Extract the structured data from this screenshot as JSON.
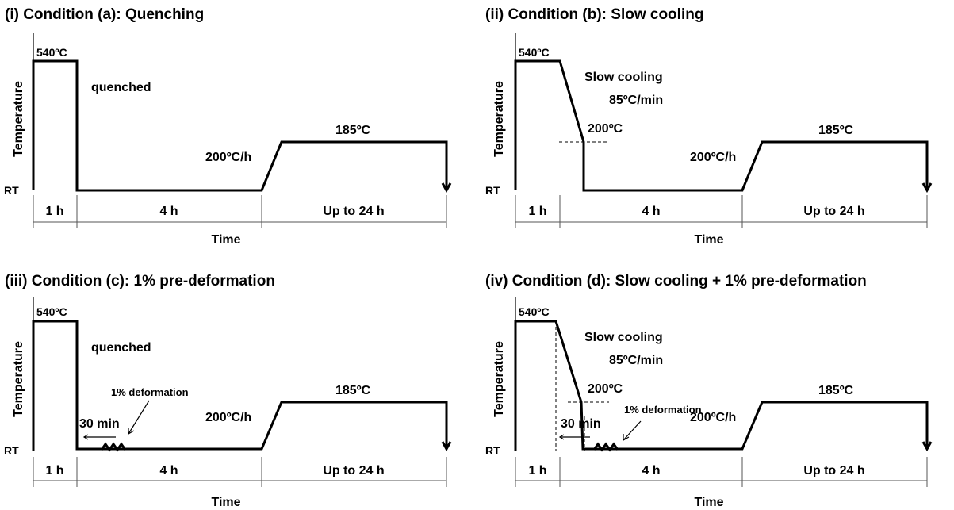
{
  "panels": [
    {
      "title": "(i) Condition (a): Quenching",
      "peak_temp": "540ºC",
      "cool_label": "quenched",
      "cool_label_2": "",
      "intermediate_temp": "",
      "ramp_label": "200ºC/h",
      "aging_temp": "185ºC",
      "deformation_label": "",
      "hold_label": "",
      "y_axis": "Temperature",
      "rt_label": "RT",
      "x_axis": "Time",
      "segments": [
        "1 h",
        "4 h",
        "Up to 24 h"
      ]
    },
    {
      "title": "(ii) Condition (b): Slow cooling",
      "peak_temp": "540ºC",
      "cool_label": "Slow cooling",
      "cool_label_2": "85ºC/min",
      "intermediate_temp": "200ºC",
      "ramp_label": "200ºC/h",
      "aging_temp": "185ºC",
      "deformation_label": "",
      "hold_label": "",
      "y_axis": "Temperature",
      "rt_label": "RT",
      "x_axis": "Time",
      "segments": [
        "1 h",
        "4 h",
        "Up to 24 h"
      ]
    },
    {
      "title": "(iii) Condition (c): 1% pre-deformation",
      "peak_temp": "540ºC",
      "cool_label": "quenched",
      "cool_label_2": "",
      "intermediate_temp": "",
      "ramp_label": "200ºC/h",
      "aging_temp": "185ºC",
      "deformation_label": "1% deformation",
      "hold_label": "30 min",
      "y_axis": "Temperature",
      "rt_label": "RT",
      "x_axis": "Time",
      "segments": [
        "1 h",
        "4 h",
        "Up to 24 h"
      ]
    },
    {
      "title": "(iv) Condition (d): Slow cooling + 1% pre-deformation",
      "peak_temp": "540ºC",
      "cool_label": "Slow cooling",
      "cool_label_2": "85ºC/min",
      "intermediate_temp": "200ºC",
      "ramp_label": "200ºC/h",
      "aging_temp": "185ºC",
      "deformation_label": "1% deformation",
      "hold_label": "30 min",
      "y_axis": "Temperature",
      "rt_label": "RT",
      "x_axis": "Time",
      "segments": [
        "1 h",
        "4 h",
        "Up to 24 h"
      ]
    }
  ]
}
